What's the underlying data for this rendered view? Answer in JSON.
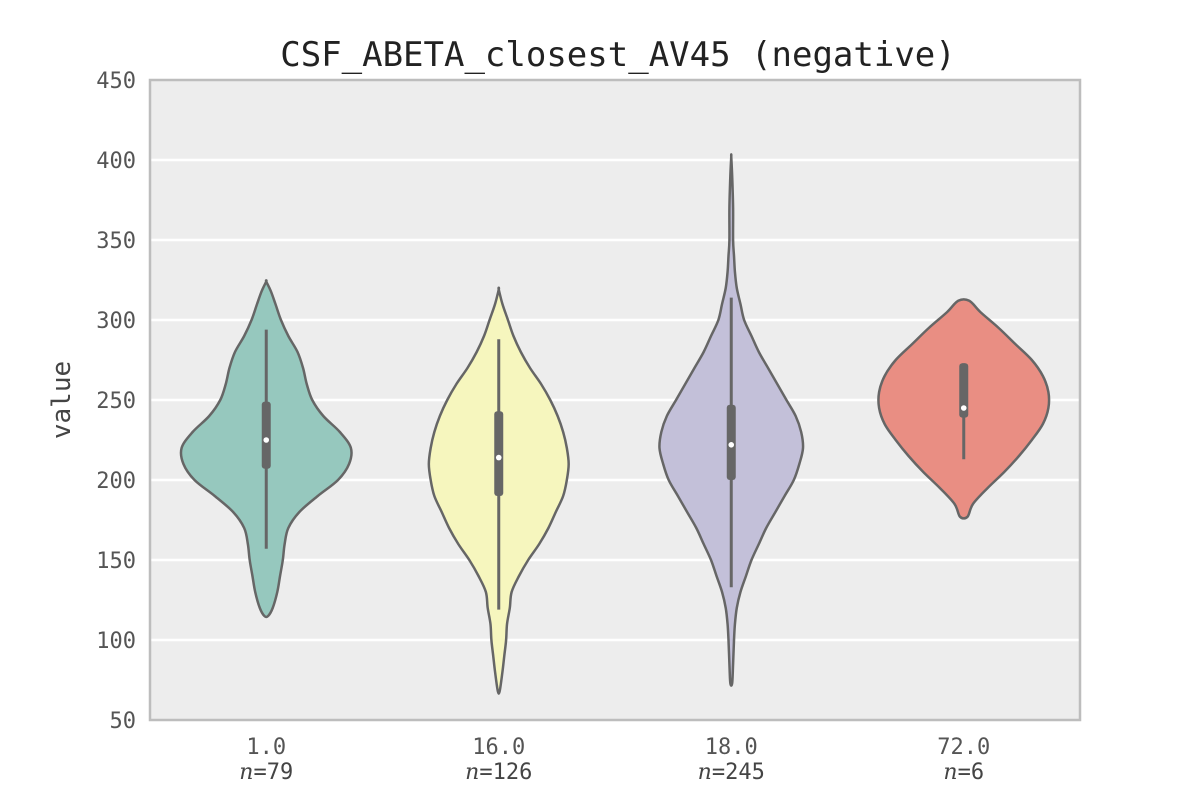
{
  "chart_data": {
    "type": "violin",
    "title": "CSF_ABETA_closest_AV45 (negative)",
    "xlabel": "",
    "ylabel": "value",
    "ylim": [
      50,
      450
    ],
    "yticks": [
      50,
      100,
      150,
      200,
      250,
      300,
      350,
      400,
      450
    ],
    "ytick_labels": [
      "50",
      "100",
      "150",
      "200",
      "250",
      "300",
      "350",
      "400",
      "450"
    ],
    "grid": true,
    "n_prefix": "n",
    "n_sep": "=",
    "categories": [
      {
        "label": "1.0",
        "n": "79",
        "color": "#96c8be",
        "range": [
          115,
          324
        ],
        "q1": 207,
        "median": 225,
        "q3": 249,
        "whisker_low": 157,
        "whisker_high": 294,
        "density": [
          [
            115,
            2
          ],
          [
            120,
            7
          ],
          [
            130,
            12
          ],
          [
            140,
            15
          ],
          [
            150,
            18
          ],
          [
            160,
            20
          ],
          [
            170,
            24
          ],
          [
            180,
            36
          ],
          [
            190,
            56
          ],
          [
            200,
            78
          ],
          [
            210,
            90
          ],
          [
            220,
            92
          ],
          [
            230,
            80
          ],
          [
            240,
            62
          ],
          [
            250,
            50
          ],
          [
            260,
            44
          ],
          [
            270,
            40
          ],
          [
            280,
            34
          ],
          [
            290,
            24
          ],
          [
            300,
            16
          ],
          [
            310,
            10
          ],
          [
            318,
            5
          ],
          [
            324,
            0
          ]
        ]
      },
      {
        "label": "16.0",
        "n": "126",
        "color": "#f6f6be",
        "range": [
          68,
          319
        ],
        "q1": 190,
        "median": 214,
        "q3": 243,
        "whisker_low": 119,
        "whisker_high": 288,
        "density": [
          [
            68,
            1
          ],
          [
            80,
            4
          ],
          [
            90,
            6
          ],
          [
            100,
            8
          ],
          [
            110,
            9
          ],
          [
            120,
            12
          ],
          [
            130,
            14
          ],
          [
            140,
            22
          ],
          [
            150,
            32
          ],
          [
            160,
            44
          ],
          [
            170,
            54
          ],
          [
            180,
            62
          ],
          [
            190,
            70
          ],
          [
            200,
            74
          ],
          [
            210,
            76
          ],
          [
            220,
            74
          ],
          [
            230,
            70
          ],
          [
            240,
            64
          ],
          [
            250,
            56
          ],
          [
            260,
            46
          ],
          [
            270,
            34
          ],
          [
            280,
            24
          ],
          [
            290,
            16
          ],
          [
            300,
            10
          ],
          [
            310,
            4
          ],
          [
            319,
            0
          ]
        ]
      },
      {
        "label": "18.0",
        "n": "245",
        "color": "#c3c0d9",
        "range": [
          73,
          402
        ],
        "q1": 200,
        "median": 222,
        "q3": 247,
        "whisker_low": 133,
        "whisker_high": 314,
        "density": [
          [
            73,
            1
          ],
          [
            85,
            2
          ],
          [
            100,
            3
          ],
          [
            110,
            4
          ],
          [
            120,
            6
          ],
          [
            130,
            10
          ],
          [
            140,
            16
          ],
          [
            150,
            22
          ],
          [
            160,
            30
          ],
          [
            170,
            38
          ],
          [
            180,
            48
          ],
          [
            190,
            58
          ],
          [
            200,
            68
          ],
          [
            210,
            74
          ],
          [
            220,
            78
          ],
          [
            230,
            76
          ],
          [
            240,
            70
          ],
          [
            250,
            60
          ],
          [
            260,
            50
          ],
          [
            270,
            40
          ],
          [
            280,
            30
          ],
          [
            290,
            22
          ],
          [
            300,
            14
          ],
          [
            310,
            10
          ],
          [
            320,
            6
          ],
          [
            330,
            4
          ],
          [
            340,
            3
          ],
          [
            350,
            2
          ],
          [
            370,
            2
          ],
          [
            390,
            1
          ],
          [
            402,
            0
          ]
        ]
      },
      {
        "label": "72.0",
        "n": "6",
        "color": "#e98e83",
        "range": [
          177,
          312
        ],
        "q1": 239,
        "median": 245,
        "q3": 273,
        "whisker_low": 213,
        "whisker_high": 273,
        "density": [
          [
            177,
            4
          ],
          [
            185,
            10
          ],
          [
            195,
            26
          ],
          [
            205,
            44
          ],
          [
            215,
            60
          ],
          [
            225,
            74
          ],
          [
            235,
            86
          ],
          [
            245,
            92
          ],
          [
            255,
            92
          ],
          [
            265,
            86
          ],
          [
            275,
            74
          ],
          [
            285,
            56
          ],
          [
            295,
            38
          ],
          [
            305,
            18
          ],
          [
            312,
            6
          ]
        ]
      }
    ]
  }
}
